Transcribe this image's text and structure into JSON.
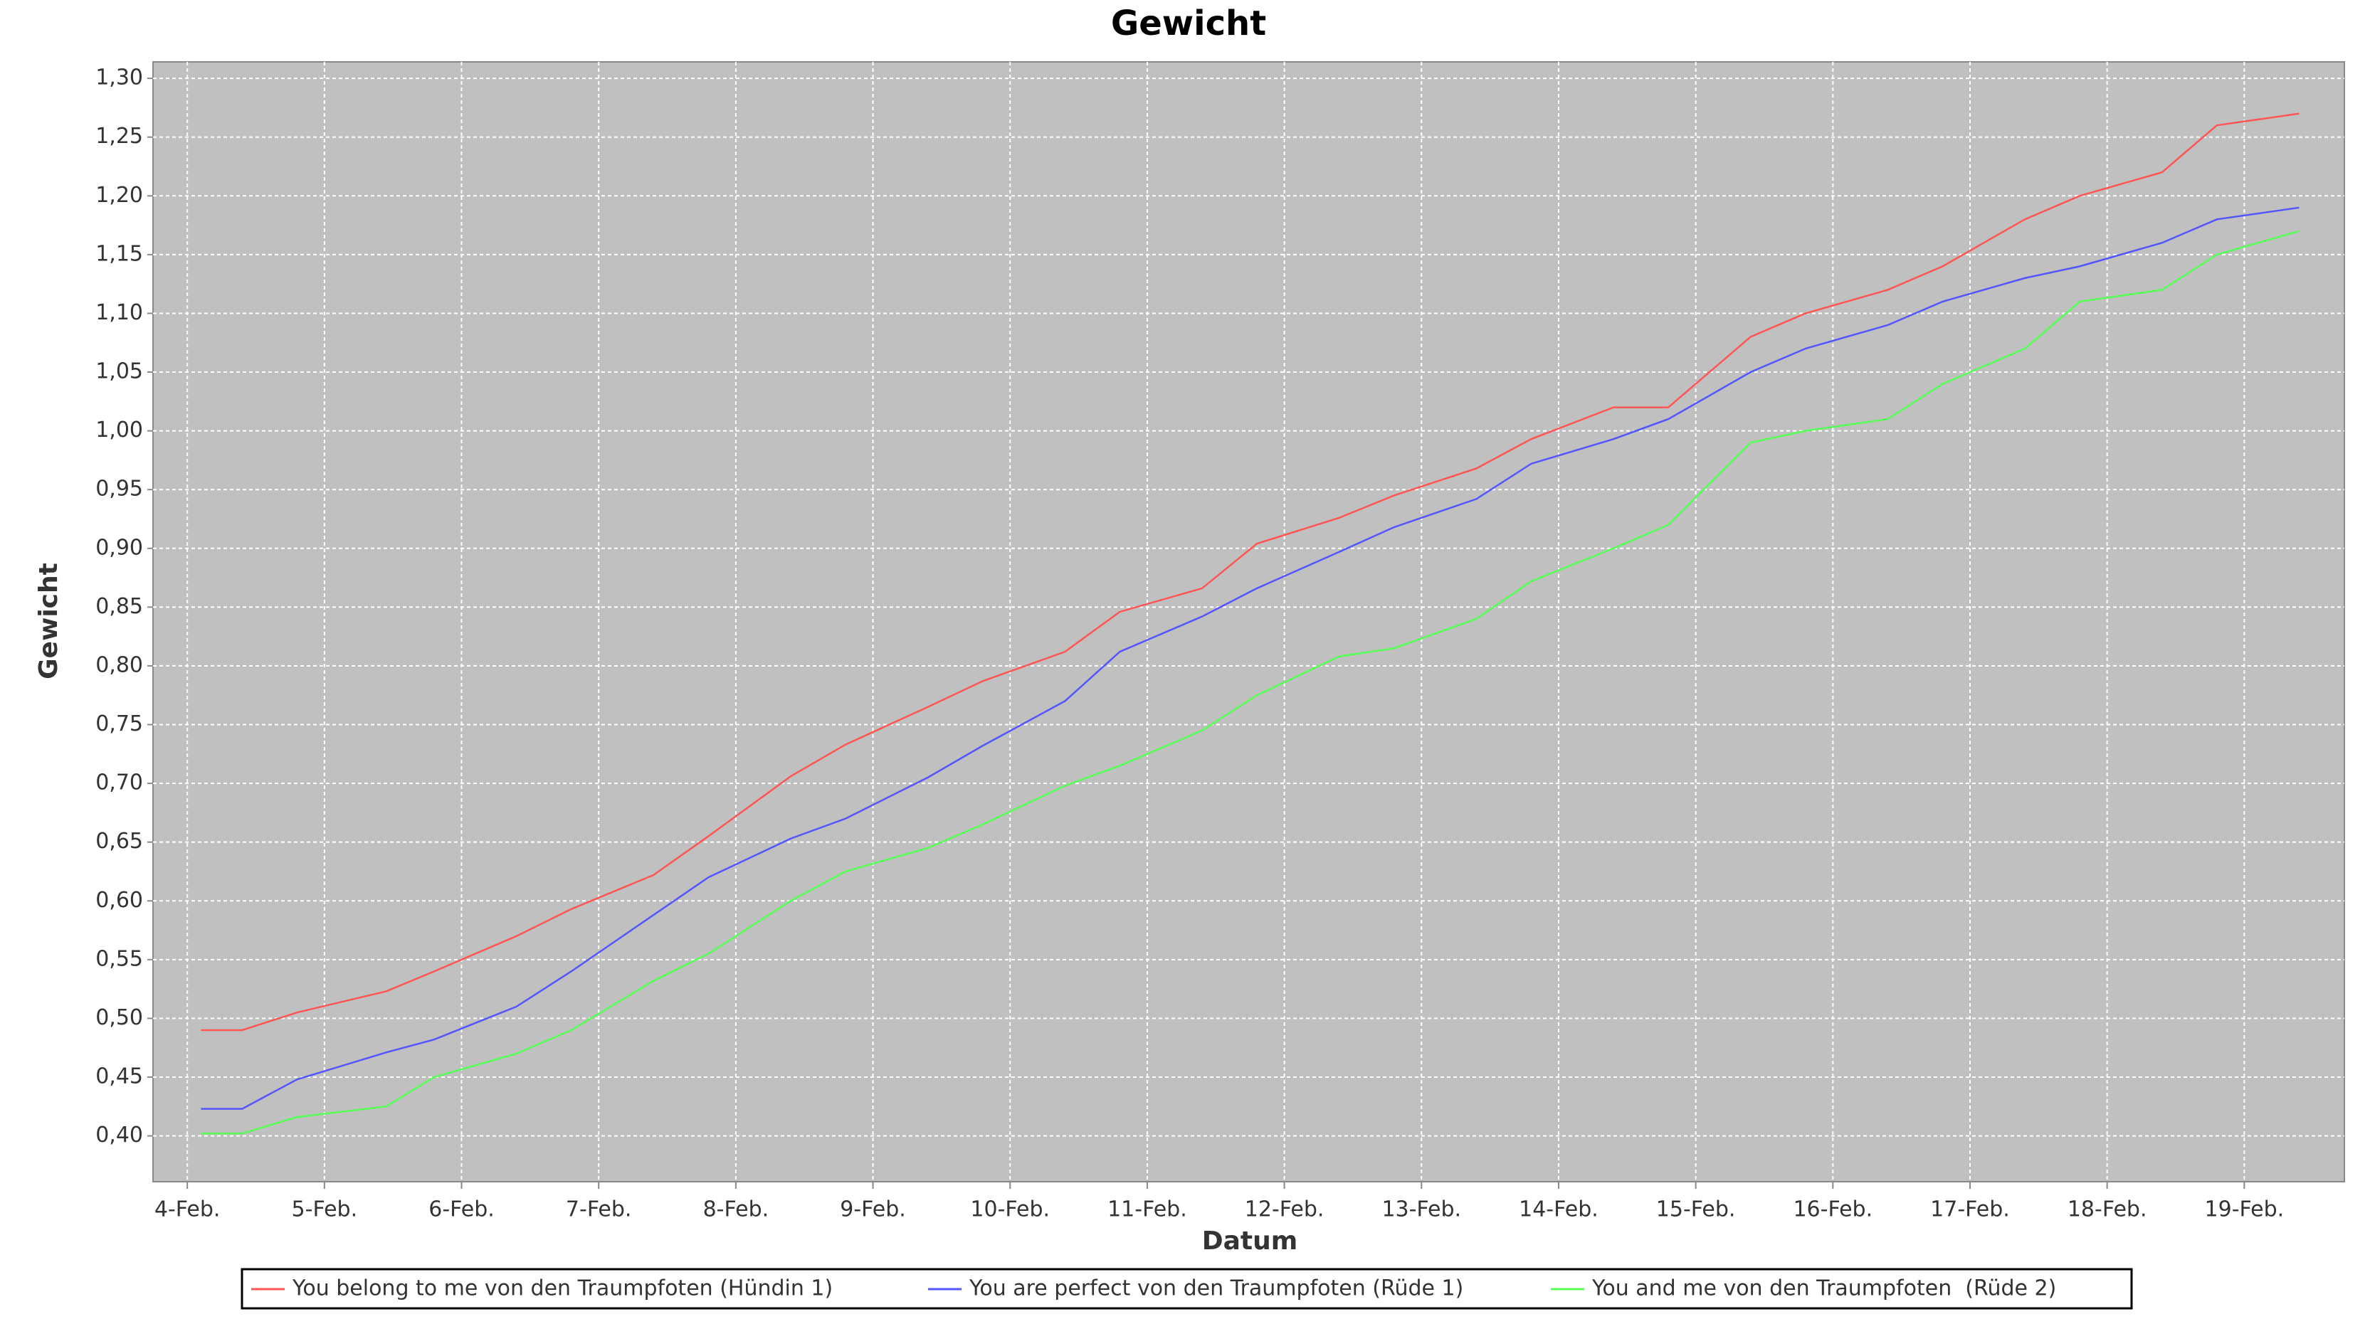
{
  "chart_data": {
    "type": "line",
    "title": "Gewicht",
    "x_label": "Datum",
    "y_label": "Gewicht",
    "x": [
      4.1,
      4.4,
      4.8,
      5.45,
      5.8,
      6.4,
      6.8,
      7.4,
      7.8,
      8.4,
      8.8,
      9.4,
      9.8,
      10.4,
      10.8,
      11.4,
      11.8,
      12.4,
      12.8,
      13.4,
      13.8,
      14.4,
      14.8,
      15.4,
      15.8,
      16.4,
      16.8,
      17.4,
      17.8,
      18.4,
      18.8,
      19.4
    ],
    "series": [
      {
        "name": "You belong to me von den Traumpfoten (Hündin 1)",
        "color": "#ff5555",
        "values": [
          0.49,
          0.49,
          0.505,
          0.523,
          0.54,
          0.57,
          0.593,
          0.622,
          0.655,
          0.706,
          0.733,
          0.765,
          0.787,
          0.812,
          0.846,
          0.866,
          0.904,
          0.926,
          0.945,
          0.968,
          0.993,
          1.02,
          1.02,
          1.08,
          1.1,
          1.12,
          1.14,
          1.18,
          1.2,
          1.22,
          1.26,
          1.27
        ]
      },
      {
        "name": "You are perfect von den Traumpfoten (Rüde 1)",
        "color": "#5555ff",
        "values": [
          0.423,
          0.423,
          0.448,
          0.471,
          0.482,
          0.51,
          0.54,
          0.588,
          0.62,
          0.653,
          0.67,
          0.705,
          0.732,
          0.77,
          0.812,
          0.842,
          0.866,
          0.897,
          0.918,
          0.942,
          0.972,
          0.993,
          1.01,
          1.05,
          1.07,
          1.09,
          1.11,
          1.13,
          1.14,
          1.16,
          1.18,
          1.19
        ]
      },
      {
        "name": "You and me von den Traumpfoten  (Rüde 2)",
        "color": "#55ff55",
        "values": [
          0.402,
          0.402,
          0.416,
          0.425,
          0.45,
          0.47,
          0.49,
          0.532,
          0.555,
          0.6,
          0.625,
          0.645,
          0.665,
          0.698,
          0.715,
          0.745,
          0.775,
          0.808,
          0.815,
          0.84,
          0.872,
          0.9,
          0.92,
          0.99,
          1.0,
          1.01,
          1.04,
          1.07,
          1.11,
          1.12,
          1.15,
          1.17
        ]
      }
    ],
    "xlim": [
      3.75,
      19.73
    ],
    "ylim": [
      0.361,
      1.314
    ],
    "xticks": [
      {
        "value": 4,
        "label": "4-Feb."
      },
      {
        "value": 5,
        "label": "5-Feb."
      },
      {
        "value": 6,
        "label": "6-Feb."
      },
      {
        "value": 7,
        "label": "7-Feb."
      },
      {
        "value": 8,
        "label": "8-Feb."
      },
      {
        "value": 9,
        "label": "9-Feb."
      },
      {
        "value": 10,
        "label": "10-Feb."
      },
      {
        "value": 11,
        "label": "11-Feb."
      },
      {
        "value": 12,
        "label": "12-Feb."
      },
      {
        "value": 13,
        "label": "13-Feb."
      },
      {
        "value": 14,
        "label": "14-Feb."
      },
      {
        "value": 15,
        "label": "15-Feb."
      },
      {
        "value": 16,
        "label": "16-Feb."
      },
      {
        "value": 17,
        "label": "17-Feb."
      },
      {
        "value": 18,
        "label": "18-Feb."
      },
      {
        "value": 19,
        "label": "19-Feb."
      }
    ],
    "yticks": [
      {
        "value": 0.4,
        "label": "0,40"
      },
      {
        "value": 0.45,
        "label": "0,45"
      },
      {
        "value": 0.5,
        "label": "0,50"
      },
      {
        "value": 0.55,
        "label": "0,55"
      },
      {
        "value": 0.6,
        "label": "0,60"
      },
      {
        "value": 0.65,
        "label": "0,65"
      },
      {
        "value": 0.7,
        "label": "0,70"
      },
      {
        "value": 0.75,
        "label": "0,75"
      },
      {
        "value": 0.8,
        "label": "0,80"
      },
      {
        "value": 0.85,
        "label": "0,85"
      },
      {
        "value": 0.9,
        "label": "0,90"
      },
      {
        "value": 0.95,
        "label": "0,95"
      },
      {
        "value": 1.0,
        "label": "1,00"
      },
      {
        "value": 1.05,
        "label": "1,05"
      },
      {
        "value": 1.1,
        "label": "1,10"
      },
      {
        "value": 1.15,
        "label": "1,15"
      },
      {
        "value": 1.2,
        "label": "1,20"
      },
      {
        "value": 1.25,
        "label": "1,25"
      },
      {
        "value": 1.3,
        "label": "1,30"
      }
    ],
    "grid": true,
    "legend": "bottom",
    "background": "#c0c0c0"
  }
}
